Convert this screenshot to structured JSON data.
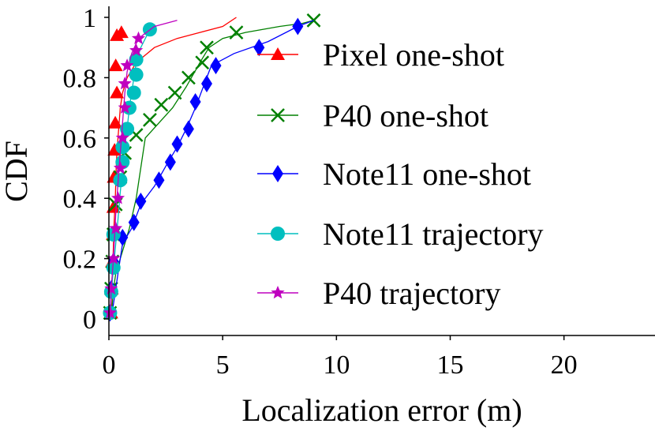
{
  "chart_data": {
    "type": "line",
    "title": "",
    "xlabel": "Localization error (m)",
    "ylabel": "CDF",
    "xlim": [
      0,
      24
    ],
    "ylim": [
      0,
      1
    ],
    "x_ticks": [
      0,
      5,
      10,
      15,
      20
    ],
    "y_ticks": [
      0,
      0.2,
      0.4,
      0.6,
      0.8,
      1
    ],
    "x_tick_labels": [
      "0",
      "5",
      "10",
      "15",
      "20"
    ],
    "y_tick_labels": [
      "0",
      "0.2",
      "0.4",
      "0.6",
      "0.8",
      "1"
    ],
    "legend_position": "right",
    "series": [
      {
        "name": "Pixel one-shot",
        "color": "#ff0000",
        "marker": "triangle",
        "x": [
          0.08,
          0.1,
          0.12,
          0.15,
          0.18,
          0.2,
          0.22,
          0.25,
          0.28,
          0.3,
          0.32,
          0.35,
          0.4,
          0.45,
          0.5,
          0.6,
          0.8,
          1.2,
          2.0,
          3.0,
          4.0,
          5.0,
          5.6
        ],
        "y": [
          0.0,
          0.05,
          0.1,
          0.15,
          0.2,
          0.25,
          0.3,
          0.35,
          0.4,
          0.45,
          0.5,
          0.55,
          0.6,
          0.65,
          0.7,
          0.75,
          0.8,
          0.85,
          0.9,
          0.93,
          0.95,
          0.97,
          1.0
        ],
        "marked_points": [
          [
            0.1,
            0.02
          ],
          [
            0.12,
            0.1
          ],
          [
            0.15,
            0.19
          ],
          [
            0.18,
            0.28
          ],
          [
            0.2,
            0.37
          ],
          [
            0.22,
            0.47
          ],
          [
            0.25,
            0.56
          ],
          [
            0.28,
            0.65
          ],
          [
            0.35,
            0.75
          ],
          [
            0.3,
            0.84
          ],
          [
            0.35,
            0.94
          ],
          [
            0.55,
            0.95
          ]
        ]
      },
      {
        "name": "P40 one-shot",
        "color": "#008000",
        "marker": "x",
        "x": [
          0.1,
          0.15,
          0.2,
          0.3,
          0.5,
          0.7,
          0.9,
          1.2,
          1.6,
          2.2,
          2.8,
          3.4,
          4.0,
          4.4,
          5.0,
          6.0,
          7.5,
          8.5,
          9.0
        ],
        "y": [
          0.0,
          0.05,
          0.1,
          0.15,
          0.2,
          0.25,
          0.3,
          0.4,
          0.6,
          0.65,
          0.7,
          0.77,
          0.85,
          0.9,
          0.93,
          0.95,
          0.97,
          0.98,
          0.99
        ],
        "marked_points": [
          [
            0.05,
            0.02
          ],
          [
            0.1,
            0.1
          ],
          [
            0.15,
            0.19
          ],
          [
            0.2,
            0.28
          ],
          [
            0.3,
            0.38
          ],
          [
            0.5,
            0.47
          ],
          [
            0.7,
            0.55
          ],
          [
            1.2,
            0.61
          ],
          [
            1.8,
            0.66
          ],
          [
            2.3,
            0.71
          ],
          [
            2.9,
            0.75
          ],
          [
            3.5,
            0.8
          ],
          [
            4.1,
            0.85
          ],
          [
            4.3,
            0.9
          ],
          [
            5.6,
            0.95
          ],
          [
            9.0,
            0.99
          ]
        ]
      },
      {
        "name": "Note11 one-shot",
        "color": "#0000ff",
        "marker": "diamond",
        "x": [
          0.1,
          0.2,
          0.4,
          0.6,
          1.0,
          1.4,
          2.0,
          2.6,
          3.0,
          3.4,
          3.8,
          4.2,
          4.5,
          5.5,
          7.0,
          8.3,
          9.0
        ],
        "y": [
          0.0,
          0.05,
          0.15,
          0.25,
          0.3,
          0.38,
          0.44,
          0.52,
          0.57,
          0.63,
          0.7,
          0.78,
          0.84,
          0.88,
          0.92,
          0.97,
          0.99
        ],
        "marked_points": [
          [
            0.05,
            0.02
          ],
          [
            0.1,
            0.1
          ],
          [
            0.2,
            0.19
          ],
          [
            0.6,
            0.27
          ],
          [
            1.1,
            0.32
          ],
          [
            1.4,
            0.39
          ],
          [
            2.2,
            0.46
          ],
          [
            2.7,
            0.52
          ],
          [
            3.0,
            0.58
          ],
          [
            3.5,
            0.63
          ],
          [
            3.8,
            0.72
          ],
          [
            4.3,
            0.78
          ],
          [
            4.7,
            0.84
          ],
          [
            6.6,
            0.9
          ],
          [
            8.3,
            0.97
          ]
        ]
      },
      {
        "name": "Note11 trajectory",
        "color": "#00bfbf",
        "marker": "circle",
        "x": [
          0.05,
          0.1,
          0.2,
          0.3,
          0.4,
          0.5,
          0.6,
          0.7,
          0.8,
          0.9,
          1.0,
          1.1,
          1.2,
          1.4,
          1.8
        ],
        "y": [
          0.0,
          0.08,
          0.17,
          0.25,
          0.33,
          0.42,
          0.5,
          0.57,
          0.63,
          0.7,
          0.75,
          0.8,
          0.85,
          0.9,
          0.96
        ],
        "marked_points": [
          [
            0.05,
            0.02
          ],
          [
            0.1,
            0.09
          ],
          [
            0.2,
            0.17
          ],
          [
            0.2,
            0.28
          ],
          [
            0.5,
            0.46
          ],
          [
            0.6,
            0.52
          ],
          [
            0.6,
            0.57
          ],
          [
            0.8,
            0.63
          ],
          [
            0.9,
            0.7
          ],
          [
            1.1,
            0.75
          ],
          [
            1.2,
            0.81
          ],
          [
            1.2,
            0.86
          ],
          [
            1.8,
            0.96
          ]
        ]
      },
      {
        "name": "P40 trajectory",
        "color": "#bf00bf",
        "marker": "star",
        "x": [
          0.05,
          0.1,
          0.2,
          0.3,
          0.4,
          0.5,
          0.6,
          0.7,
          0.8,
          1.0,
          1.3,
          2.0,
          3.0
        ],
        "y": [
          0.0,
          0.1,
          0.2,
          0.35,
          0.45,
          0.55,
          0.65,
          0.75,
          0.82,
          0.88,
          0.93,
          0.97,
          0.99
        ],
        "marked_points": [
          [
            0.05,
            0.02
          ],
          [
            0.1,
            0.1
          ],
          [
            0.2,
            0.2
          ],
          [
            0.3,
            0.3
          ],
          [
            0.4,
            0.4
          ],
          [
            0.5,
            0.5
          ],
          [
            0.6,
            0.6
          ],
          [
            0.7,
            0.7
          ],
          [
            0.7,
            0.78
          ],
          [
            0.8,
            0.84
          ],
          [
            1.2,
            0.89
          ],
          [
            1.3,
            0.93
          ]
        ]
      }
    ]
  }
}
